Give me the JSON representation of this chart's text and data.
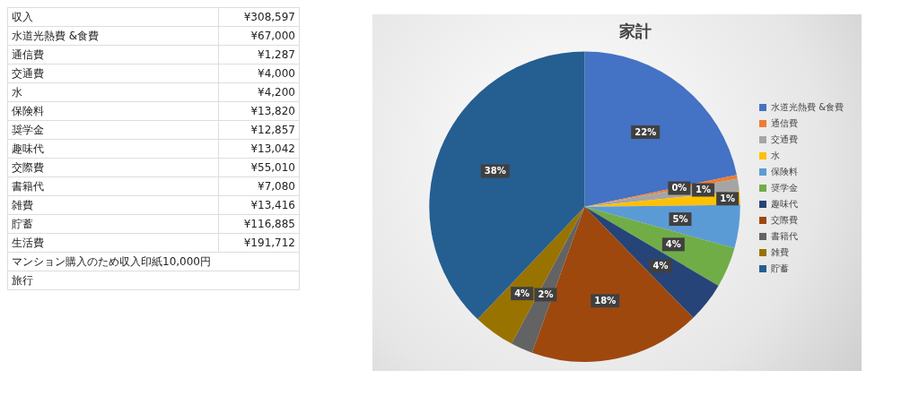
{
  "chart_data": {
    "type": "pie",
    "title": "家計",
    "categories": [
      "水道光熱費 &食費",
      "通信費",
      "交通費",
      "水",
      "保険料",
      "奨学金",
      "趣味代",
      "交際費",
      "書籍代",
      "雑費",
      "貯蓄"
    ],
    "values": [
      21.7,
      0.4,
      1.3,
      1.4,
      4.5,
      4.2,
      4.2,
      17.8,
      2.3,
      4.3,
      37.9
    ],
    "colors": [
      "#4472c4",
      "#ed7d31",
      "#a5a5a5",
      "#ffc000",
      "#5b9bd5",
      "#70ad47",
      "#264478",
      "#9e480e",
      "#636363",
      "#997300",
      "#255e91"
    ],
    "value_labels": [
      "22%",
      "0%",
      "1%",
      "1%",
      "5%",
      "4%",
      "4%",
      "18%",
      "2%",
      "4%",
      "38%"
    ],
    "legend": "right",
    "annotations": [
      "収入 ¥308,597",
      "水道光熱費 &食費 ¥67,000",
      "通信費 ¥1,287",
      "交通費 ¥4,000",
      "水 ¥4,200",
      "保険料 ¥13,820",
      "奨学金 ¥12,857",
      "趣味代 ¥13,042",
      "交際費 ¥55,010",
      "書籍代 ¥7,080",
      "雑費 ¥13,416",
      "貯蓄 ¥116,885",
      "生活費 ¥191,712",
      "マンション購入のため収入印紙10,000円",
      "旅行"
    ]
  }
}
